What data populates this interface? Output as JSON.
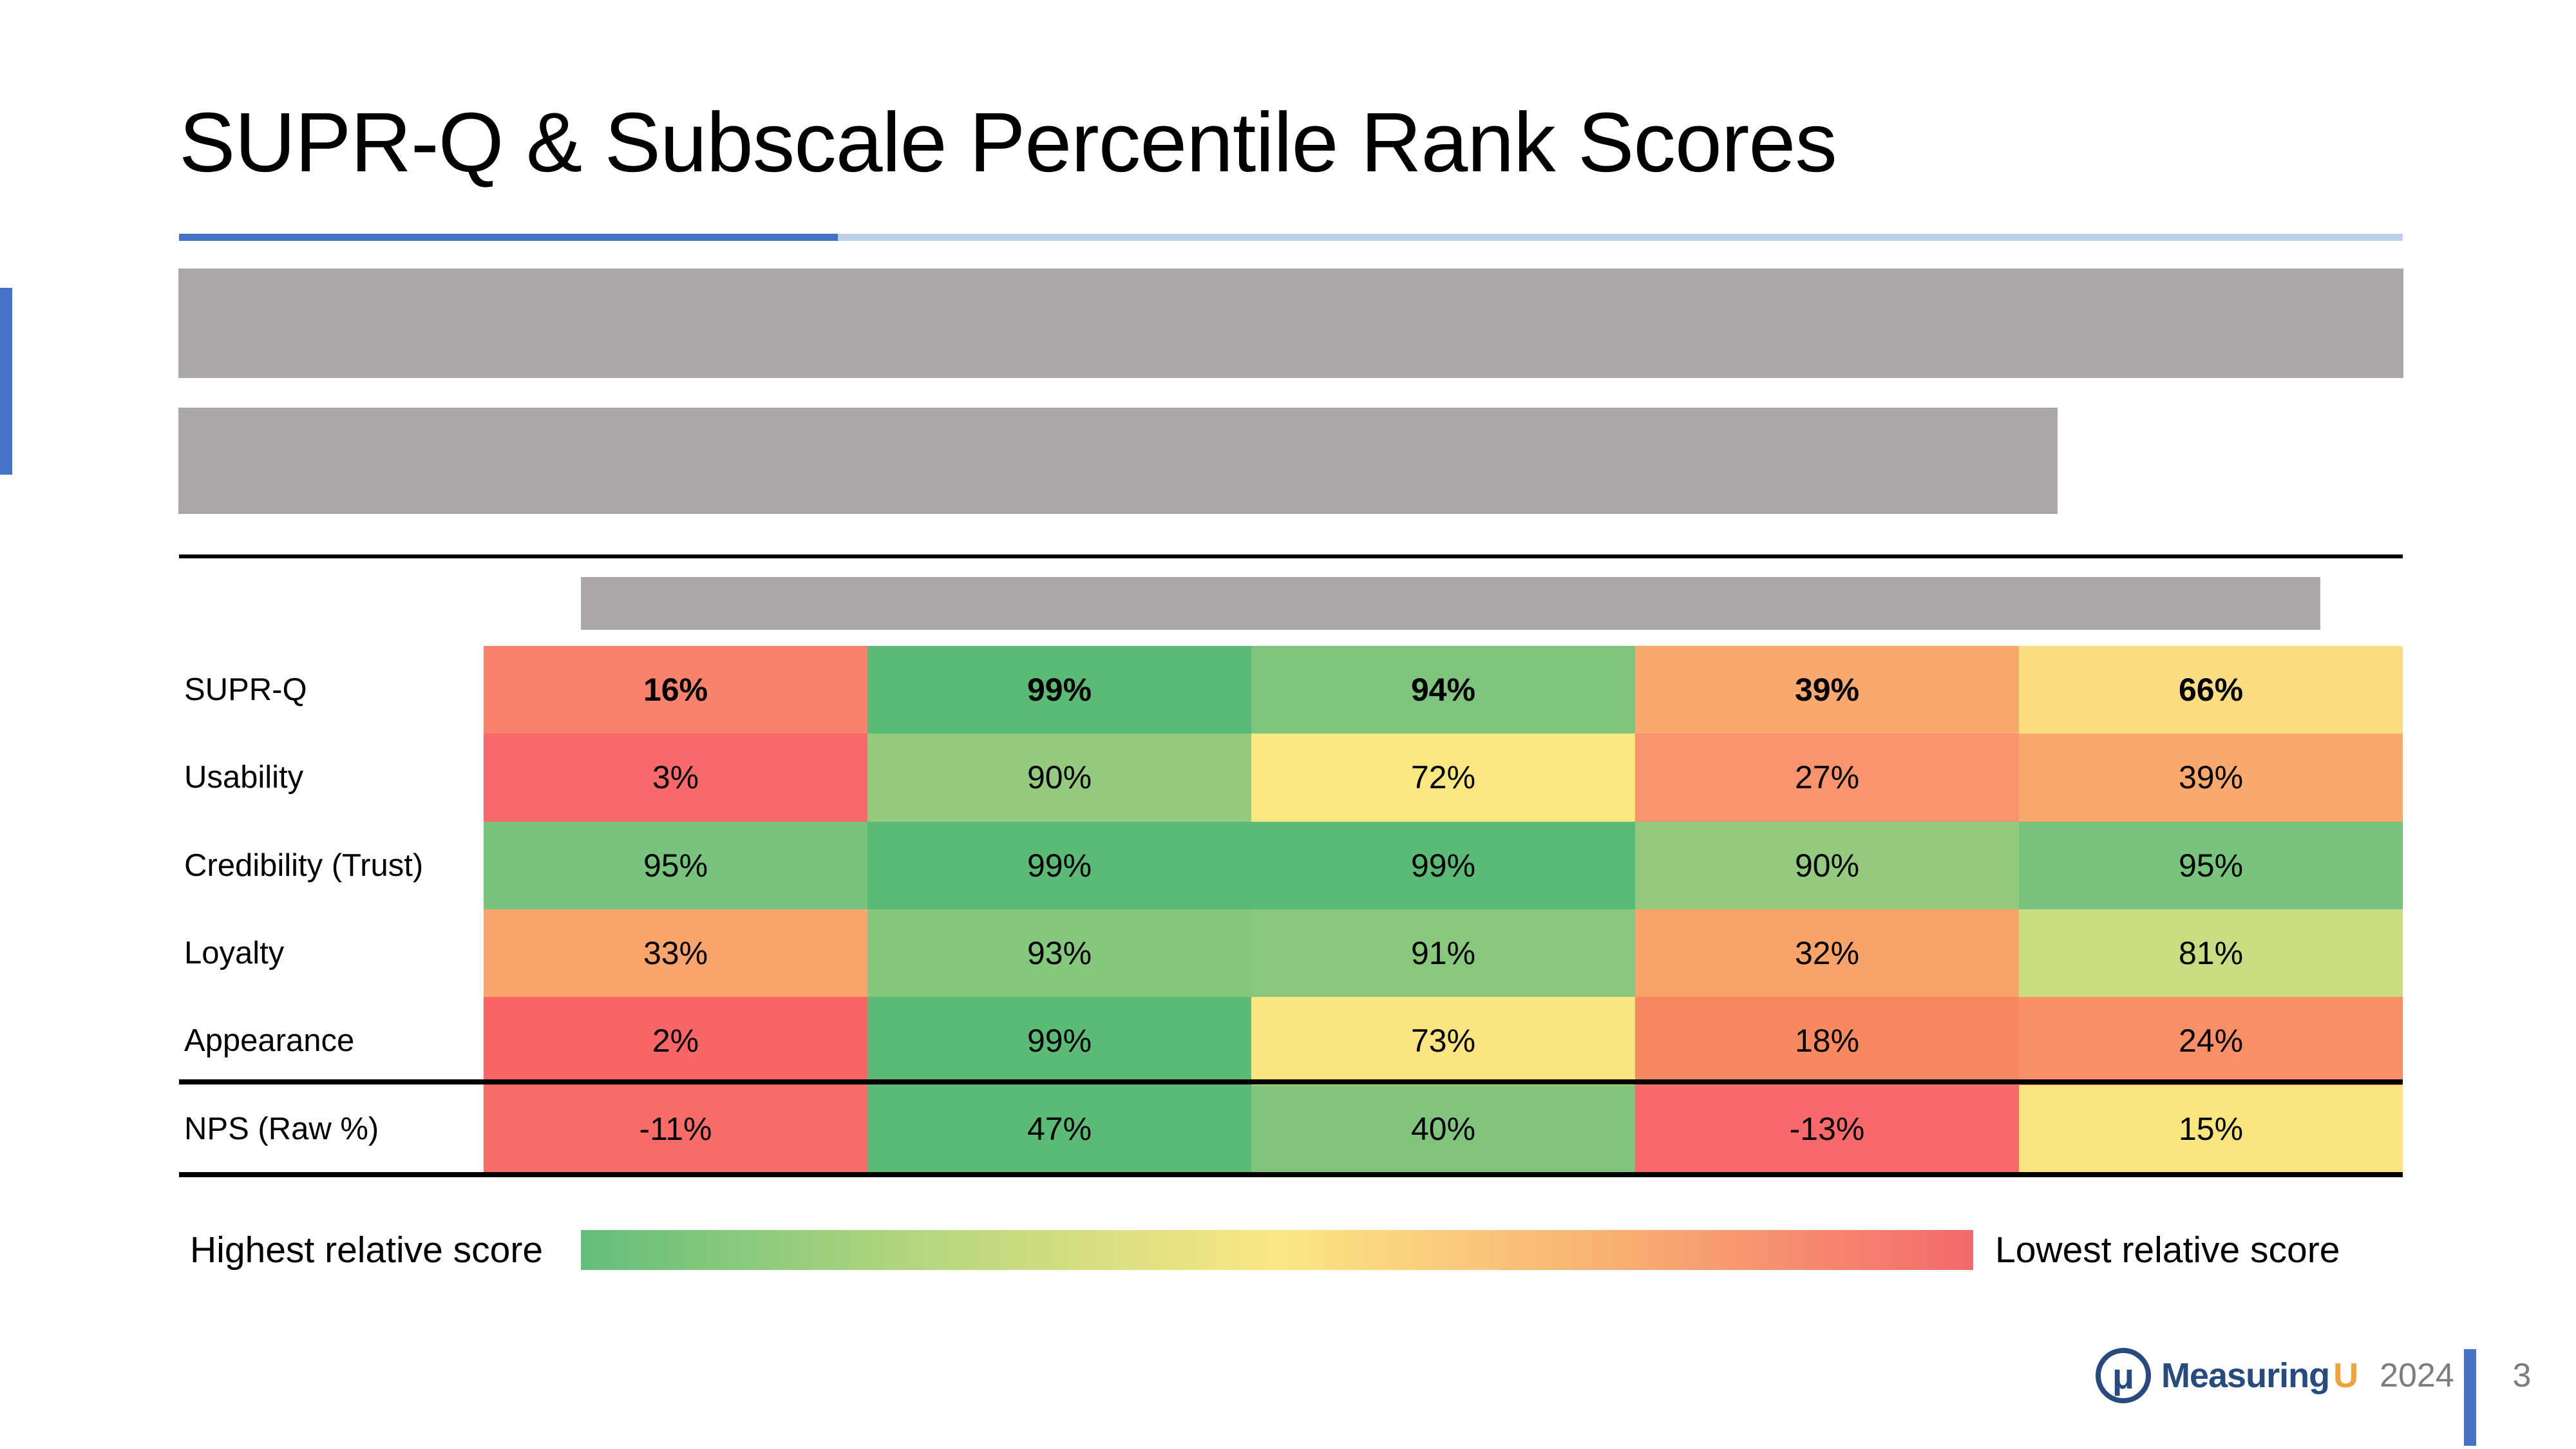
{
  "slide": {
    "title": "SUPR-Q & Subscale Percentile Rank Scores",
    "accent_color": "#4472C4",
    "divider_dark_color": "#4472C4",
    "divider_light_color": "#BDCEE9",
    "redaction_color": "#ACA8A7"
  },
  "legend": {
    "left_label": "Highest relative score",
    "right_label": "Lowest relative score",
    "gradient": [
      "#63BE7B",
      "#B7D77F",
      "#FBE784",
      "#F8AE72",
      "#F4696C"
    ]
  },
  "footer": {
    "logo_symbol": "μ",
    "brand_part1": "Measuring",
    "brand_part2": "U",
    "brand_color": "#274B7E",
    "brand_u_color": "#F0A23C",
    "year": "2024",
    "page_number": "3",
    "page_divider_color": "#4472C4",
    "muted_text_color": "#7D7D7D"
  },
  "chart_data": {
    "type": "heatmap",
    "title": "SUPR-Q & Subscale Percentile Rank Scores",
    "legend": {
      "high_label": "Highest relative score",
      "low_label": "Lowest relative score",
      "scale_colors": {
        "max": "#63BE7B",
        "mid": "#FFEB84",
        "min": "#F8696B"
      }
    },
    "rows": [
      {
        "label": "SUPR-Q",
        "bold": true,
        "values": [
          16,
          99,
          94,
          39,
          66
        ],
        "display": [
          "16%",
          "99%",
          "94%",
          "39%",
          "66%"
        ],
        "colors": [
          "#F8826C",
          "#5CBA77",
          "#80C57E",
          "#F9A96E",
          "#FBDE82"
        ]
      },
      {
        "label": "Usability",
        "bold": false,
        "values": [
          3,
          90,
          72,
          27,
          39
        ],
        "display": [
          "3%",
          "90%",
          "72%",
          "27%",
          "39%"
        ],
        "colors": [
          "#F8696B",
          "#93CA7E",
          "#FBE77F",
          "#F9946E",
          "#F9A96E"
        ]
      },
      {
        "label": "Credibility (Trust)",
        "bold": false,
        "values": [
          95,
          99,
          99,
          90,
          95
        ],
        "display": [
          "95%",
          "99%",
          "99%",
          "90%",
          "95%"
        ],
        "colors": [
          "#79C47D",
          "#5CBA77",
          "#5CBA77",
          "#93CA7E",
          "#79C47D"
        ]
      },
      {
        "label": "Loyalty",
        "bold": false,
        "values": [
          33,
          93,
          91,
          32,
          81
        ],
        "display": [
          "33%",
          "93%",
          "91%",
          "32%",
          "81%"
        ],
        "colors": [
          "#F9A46C",
          "#86C77E",
          "#89C77D",
          "#F9A26A",
          "#C9DC82"
        ]
      },
      {
        "label": "Appearance",
        "bold": false,
        "values": [
          2,
          99,
          73,
          18,
          24
        ],
        "display": [
          "2%",
          "99%",
          "73%",
          "18%",
          "24%"
        ],
        "colors": [
          "#F86567",
          "#5CBA77",
          "#FBE581",
          "#F8885F",
          "#F88F67"
        ]
      },
      {
        "label": "NPS (Raw %)",
        "bold": false,
        "values": [
          -11,
          47,
          40,
          -13,
          15
        ],
        "display": [
          "-11%",
          "47%",
          "40%",
          "-13%",
          "15%"
        ],
        "colors": [
          "#F76C69",
          "#5CBA77",
          "#80C47D",
          "#F8696B",
          "#FAE57E"
        ]
      }
    ]
  }
}
